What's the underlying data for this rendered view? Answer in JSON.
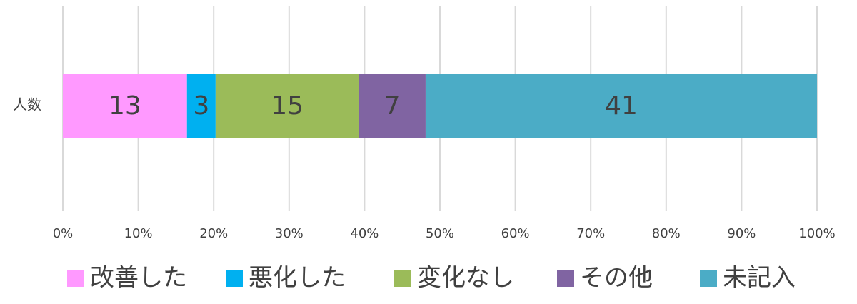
{
  "chart_data": {
    "type": "bar",
    "stacked": "percent",
    "orientation": "horizontal",
    "categories": [
      "人数"
    ],
    "series": [
      {
        "name": "改善した",
        "color": "#ff99ff",
        "values": [
          13
        ]
      },
      {
        "name": "悪化した",
        "color": "#00b0f0",
        "values": [
          3
        ]
      },
      {
        "name": "変化なし",
        "color": "#9bbb59",
        "values": [
          15
        ]
      },
      {
        "name": "その他",
        "color": "#8064a2",
        "values": [
          7
        ]
      },
      {
        "name": "未記入",
        "color": "#4bacc6",
        "values": [
          41
        ]
      }
    ],
    "xlim": [
      0,
      100
    ],
    "xticks": [
      {
        "value": 0,
        "label": "0%"
      },
      {
        "value": 10,
        "label": "10%"
      },
      {
        "value": 20,
        "label": "20%"
      },
      {
        "value": 30,
        "label": "30%"
      },
      {
        "value": 40,
        "label": "40%"
      },
      {
        "value": 50,
        "label": "50%"
      },
      {
        "value": 60,
        "label": "60%"
      },
      {
        "value": 70,
        "label": "70%"
      },
      {
        "value": 80,
        "label": "80%"
      },
      {
        "value": 90,
        "label": "90%"
      },
      {
        "value": 100,
        "label": "100%"
      }
    ],
    "grid": true,
    "legend": "bottom"
  }
}
